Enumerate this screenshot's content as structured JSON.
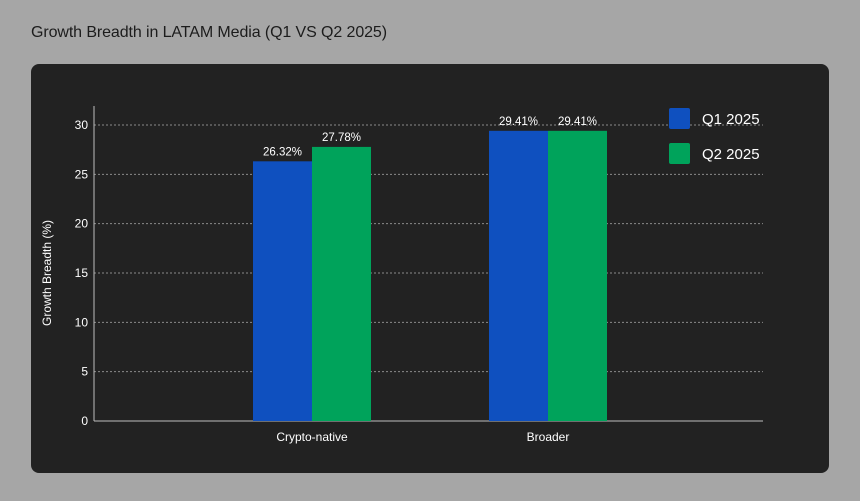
{
  "title": "Growth Breadth in LATAM Media (Q1 VS Q2 2025)",
  "colors": {
    "page_bg": "#a6a6a6",
    "card_bg": "#222222",
    "q1": "#0f50bf",
    "q2": "#00a35b",
    "text": "#ffffff",
    "grid": "#8a8a8a"
  },
  "chart_data": {
    "type": "bar",
    "categories": [
      "Crypto-native",
      "Broader"
    ],
    "series": [
      {
        "name": "Q1 2025",
        "values": [
          26.32,
          29.41
        ],
        "labels": [
          "26.32%",
          "29.41%"
        ],
        "color": "#0f50bf"
      },
      {
        "name": "Q2 2025",
        "values": [
          27.78,
          29.41
        ],
        "labels": [
          "27.78%",
          "29.41%"
        ],
        "color": "#00a35b"
      }
    ],
    "xlabel": "",
    "ylabel": "Growth Breadth (%)",
    "ylim": [
      0,
      30
    ],
    "yticks": [
      0,
      5,
      10,
      15,
      20,
      25,
      30
    ],
    "grid": true,
    "legend": "top-right"
  }
}
